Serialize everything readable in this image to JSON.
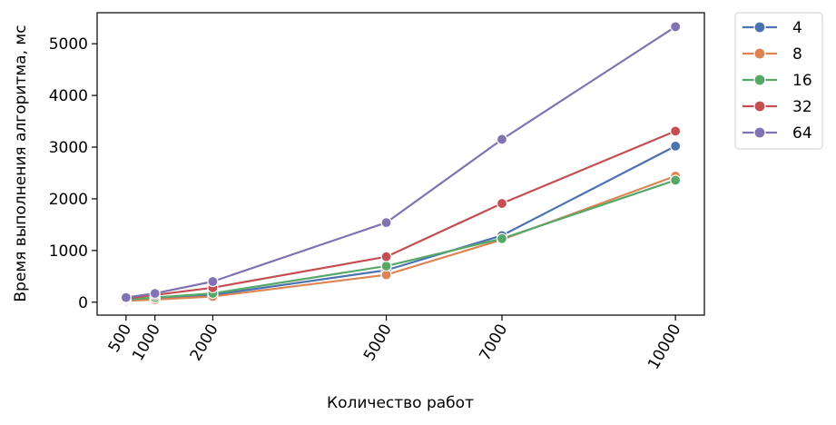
{
  "chart_data": {
    "type": "line",
    "title": "",
    "xlabel": "Количество работ",
    "ylabel": "Время выполнения алгоритма, мс",
    "x": [
      500,
      1000,
      2000,
      5000,
      7000,
      10000
    ],
    "x_tick_labels": [
      "500",
      "1000",
      "2000",
      "5000",
      "7000",
      "10000"
    ],
    "y_ticks": [
      0,
      1000,
      2000,
      3000,
      4000,
      5000
    ],
    "y_tick_labels": [
      "0",
      "1000",
      "2000",
      "3000",
      "4000",
      "5000"
    ],
    "xlim": [
      0,
      10500
    ],
    "ylim": [
      -250,
      5600
    ],
    "grid": false,
    "legend_position": "outside-top-right",
    "series": [
      {
        "name": "4",
        "color": "#4c72b0",
        "values": [
          40,
          70,
          140,
          620,
          1290,
          3020
        ]
      },
      {
        "name": "8",
        "color": "#dd8452",
        "values": [
          25,
          50,
          110,
          530,
          1210,
          2440
        ]
      },
      {
        "name": "16",
        "color": "#55a868",
        "values": [
          50,
          90,
          170,
          700,
          1230,
          2360
        ]
      },
      {
        "name": "32",
        "color": "#c44e52",
        "values": [
          70,
          140,
          280,
          880,
          1910,
          3310
        ]
      },
      {
        "name": "64",
        "color": "#8172b2",
        "values": [
          90,
          170,
          400,
          1540,
          3150,
          5330
        ]
      }
    ]
  }
}
